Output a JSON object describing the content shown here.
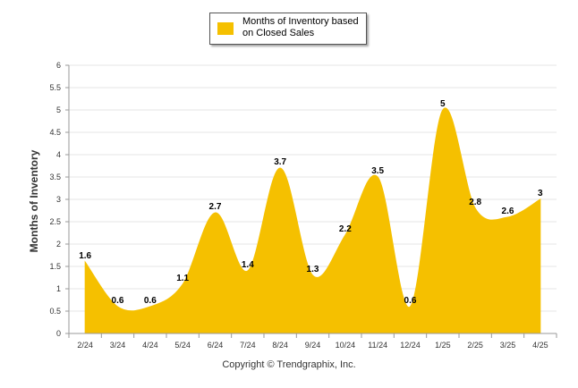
{
  "legend": {
    "label": "Months of Inventory based on Closed Sales",
    "color": "#F5C000"
  },
  "footer": {
    "copyright": "Copyright © Trendgraphix, Inc."
  },
  "chart_data": {
    "type": "area",
    "categories": [
      "2/24",
      "3/24",
      "4/24",
      "5/24",
      "6/24",
      "7/24",
      "8/24",
      "9/24",
      "10/24",
      "11/24",
      "12/24",
      "1/25",
      "2/25",
      "3/25",
      "4/25"
    ],
    "series": [
      {
        "name": "Months of Inventory based on Closed Sales",
        "values": [
          1.6,
          0.6,
          0.6,
          1.1,
          2.7,
          1.4,
          3.7,
          1.3,
          2.2,
          3.5,
          0.6,
          5,
          2.8,
          2.6,
          3
        ]
      }
    ],
    "xlabel": "",
    "ylabel": "Months of Inventory",
    "ylim": [
      0,
      6
    ],
    "yticks": [
      "0",
      "0.5",
      "1",
      "1.5",
      "2",
      "2.5",
      "3",
      "3.5",
      "4",
      "4.5",
      "5",
      "5.5",
      "6"
    ],
    "grid": true,
    "legend_position": "top-center",
    "fill_color": "#F5C000"
  }
}
